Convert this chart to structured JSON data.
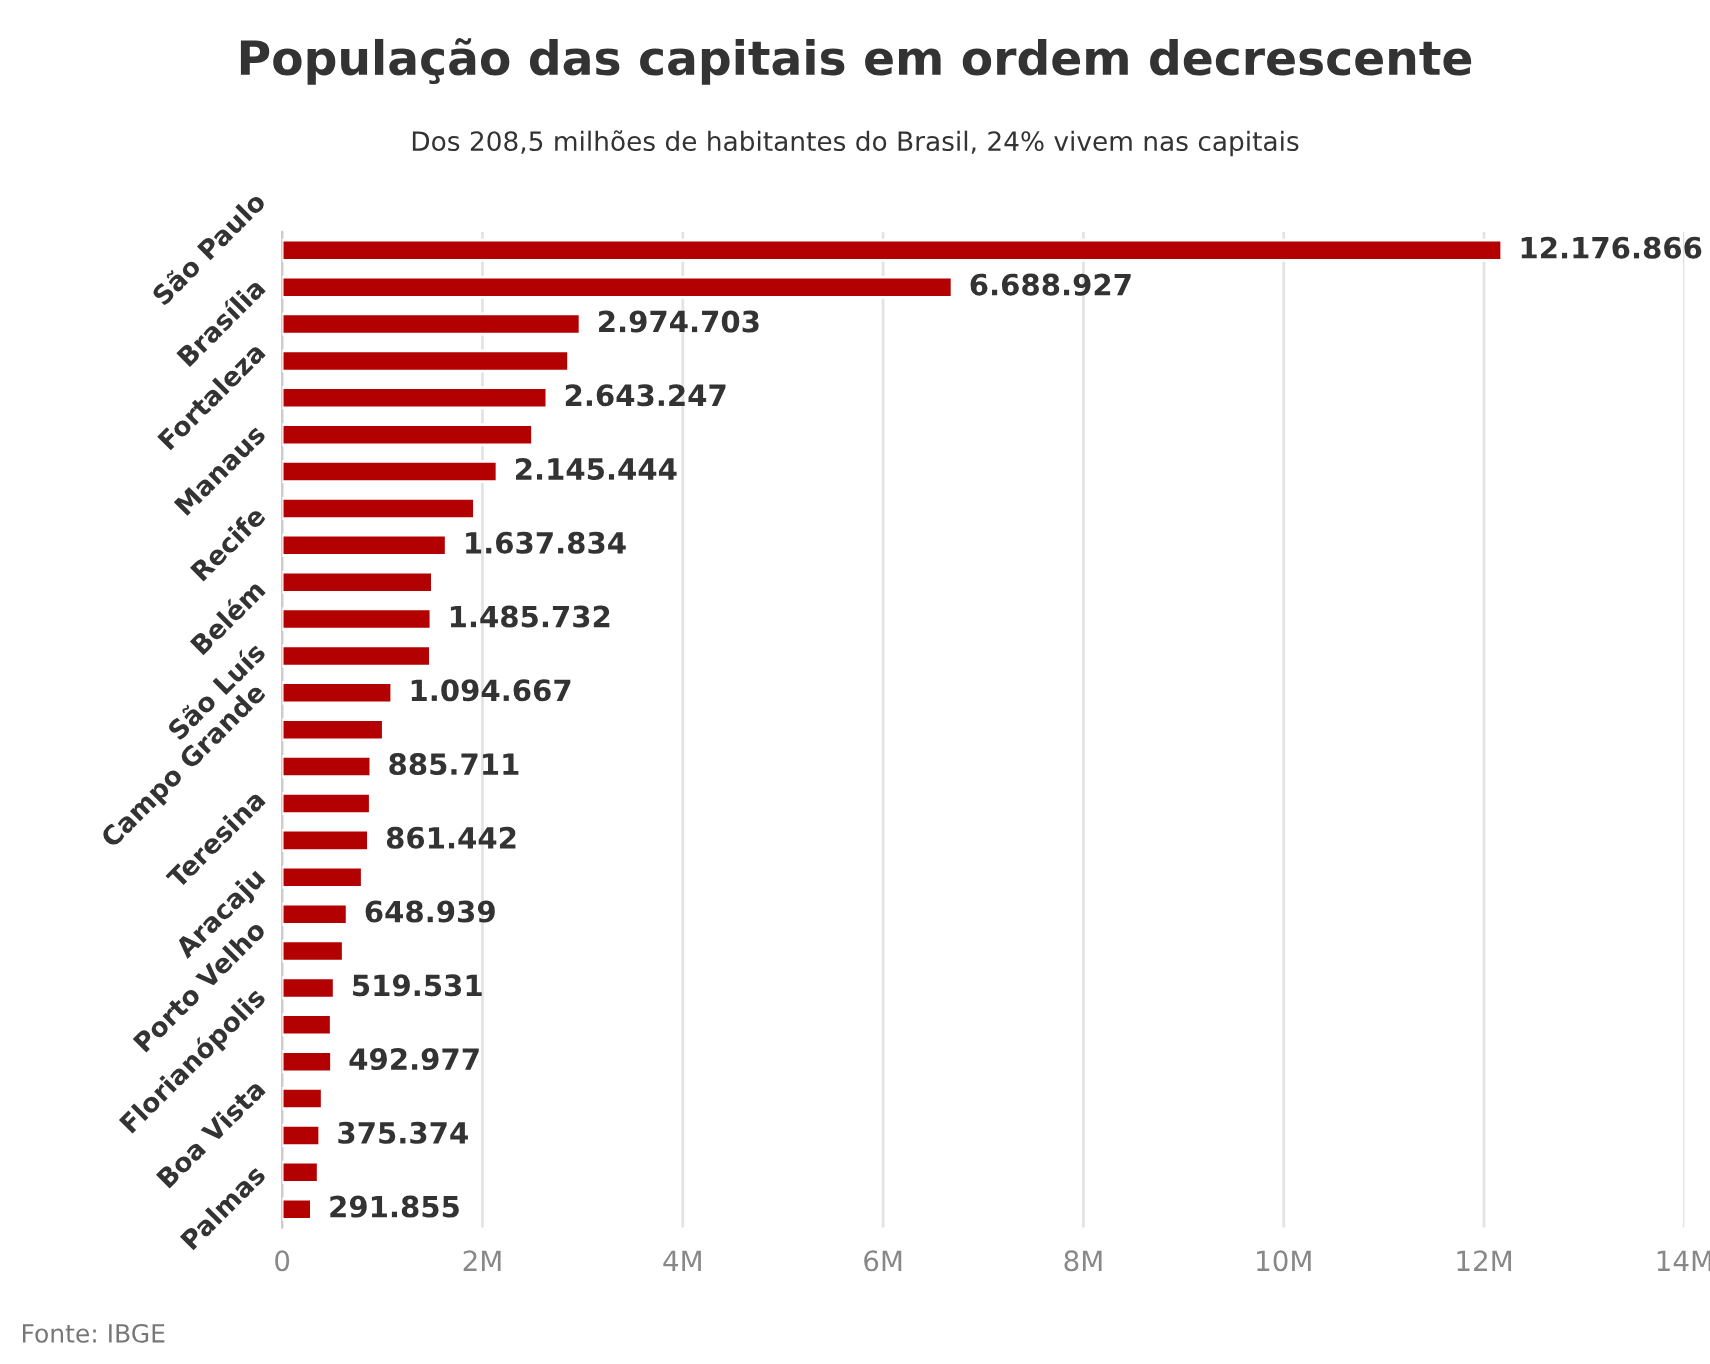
{
  "chart_data": {
    "type": "bar",
    "orientation": "horizontal",
    "title": "População das capitais em ordem decrescente",
    "subtitle": "Dos 208,5 milhões de habitantes do Brasil, 24% vivem nas capitais",
    "categories": [
      "São Paulo",
      null,
      "Brasília",
      null,
      "Fortaleza",
      null,
      "Manaus",
      null,
      "Recife",
      null,
      "Belém",
      null,
      "São Luís",
      null,
      "Campo Grande",
      null,
      "Teresina",
      null,
      "Aracaju",
      null,
      "Porto Velho",
      null,
      "Florianópolis",
      null,
      "Boa Vista",
      null,
      "Palmas"
    ],
    "values": [
      12176866,
      6688927,
      2974703,
      2860000,
      2643247,
      2500000,
      2145444,
      1920000,
      1637834,
      1500000,
      1485732,
      1480000,
      1094667,
      1010000,
      885711,
      880000,
      861442,
      800000,
      648939,
      610000,
      519531,
      490000,
      492977,
      400000,
      375374,
      360000,
      291855
    ],
    "value_labels": [
      "12.176.866",
      "6.688.927",
      "2.974.703",
      null,
      "2.643.247",
      null,
      "2.145.444",
      null,
      "1.637.834",
      null,
      "1.485.732",
      null,
      "1.094.667",
      null,
      "885.711",
      null,
      "861.442",
      null,
      "648.939",
      null,
      "519.531",
      null,
      "492.977",
      null,
      "375.374",
      null,
      "291.855"
    ],
    "color": "#b30000",
    "xlim": [
      0,
      14000000
    ],
    "xticks": [
      0,
      {
        "value": 2000000,
        "label": "2M"
      },
      {
        "value": 4000000,
        "label": "4M"
      },
      {
        "value": 6000000,
        "label": "6M"
      },
      {
        "value": 8000000,
        "label": "8M"
      },
      {
        "value": 10000000,
        "label": "10M"
      },
      {
        "value": 12000000,
        "label": "12M"
      },
      {
        "value": 14000000,
        "label": "14M"
      }
    ],
    "grid": "x",
    "legend": false,
    "annotations": [
      "Fonte: IBGE"
    ]
  }
}
